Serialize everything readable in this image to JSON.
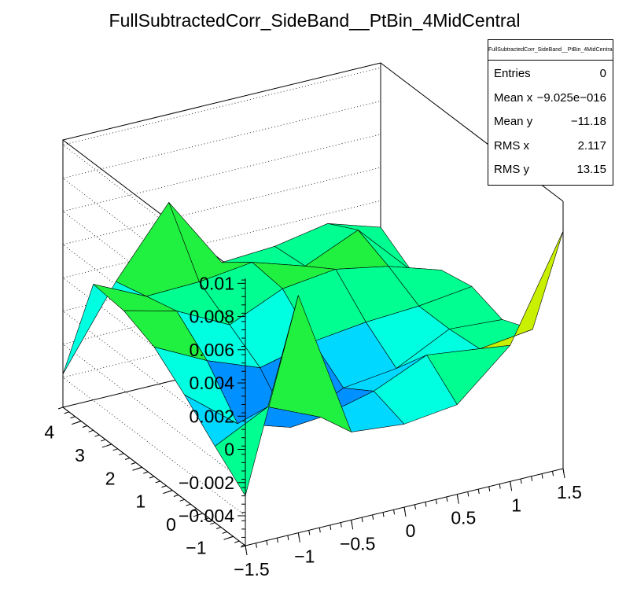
{
  "chart_data": {
    "type": "surface",
    "title": "FullSubtractedCorr_SideBand__PtBin_4MidCentral",
    "x_ticks": [
      "−1.5",
      "−1",
      "−0.5",
      "0",
      "0.5",
      "1",
      "1.5"
    ],
    "x_tick_values": [
      -1.5,
      -1,
      -0.5,
      0,
      0.5,
      1,
      1.5
    ],
    "y_ticks": [
      "−1",
      "0",
      "1",
      "2",
      "3",
      "4"
    ],
    "y_tick_values": [
      -1,
      0,
      1,
      2,
      3,
      4
    ],
    "z_ticks": [
      "−0.004",
      "−0.002",
      "0",
      "0.002",
      "0.004",
      "0.006",
      "0.008",
      "0.01"
    ],
    "z_tick_values": [
      -0.004,
      -0.002,
      0,
      0.002,
      0.004,
      0.006,
      0.008,
      0.01
    ],
    "xlim": [
      -1.5,
      1.5
    ],
    "ylim": [
      -1.4,
      4.6
    ],
    "zlim": [
      -0.0058,
      0.0103
    ],
    "palette": [
      "#6a00d8",
      "#2010f0",
      "#0040ff",
      "#0090ff",
      "#00d8ff",
      "#00ffe0",
      "#00ff90",
      "#20f040",
      "#7af000",
      "#c8f000",
      "#ffe000",
      "#ff9000",
      "#ff3000",
      "#d00000"
    ],
    "x": [
      -1.5,
      -1.0,
      -0.5,
      0.0,
      0.5,
      1.0,
      1.5
    ],
    "y": [
      -1.4,
      -0.4,
      0.6,
      1.6,
      2.6,
      3.6,
      4.6
    ],
    "z": [
      [
        -0.0028,
        0.0085,
        -0.0005,
        -0.0008,
        -0.0004,
        0.0024,
        0.0085
      ],
      [
        -0.0012,
        0.0004,
        -0.001,
        -0.0002,
        0.0012,
        0.0008,
        0.0012
      ],
      [
        0.0005,
        -0.002,
        -0.003,
        -0.0014,
        -0.001,
        0.0006,
        0.0004
      ],
      [
        0.002,
        0.0004,
        -0.0008,
        0.0,
        0.0004,
        0.0006,
        0.001
      ],
      [
        0.0028,
        0.002,
        0.0004,
        0.0018,
        0.0022,
        0.0016,
        0.0006
      ],
      [
        0.003,
        0.0015,
        0.0016,
        0.002,
        0.001,
        0.0024,
        -0.0008
      ],
      [
        -0.0038,
        0.001,
        0.005,
        0.0006,
        0.0008,
        0.0014,
        0.0004
      ]
    ],
    "stats": {
      "title": "FullSubtractedCorr_SideBand__PtBin_4MidCentral",
      "rows": [
        {
          "label": "Entries",
          "value": "0"
        },
        {
          "label": "Mean x",
          "value": "−9.025e−016"
        },
        {
          "label": "Mean y",
          "value": "−11.18"
        },
        {
          "label": "RMS x",
          "value": "2.117"
        },
        {
          "label": "RMS y",
          "value": "13.15"
        }
      ]
    }
  }
}
